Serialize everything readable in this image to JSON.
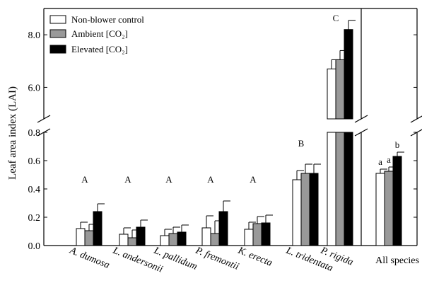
{
  "chart_data": {
    "type": "bar",
    "ylabel": "Leaf area index (LAI)",
    "y_axis_lower": {
      "range": [
        0,
        0.8
      ],
      "ticks": [
        "0.0",
        "0.2",
        "0.4",
        "0.6",
        "0.8"
      ]
    },
    "y_axis_upper": {
      "range": [
        4.8,
        9.0
      ],
      "ticks": [
        "6.0",
        "8.0"
      ]
    },
    "categories": [
      "A. dumosa",
      "L. andersonii",
      "L. pallidum",
      "P. fremontii",
      "K. erecta",
      "L. tridentata",
      "P. rigida",
      "All species"
    ],
    "series": [
      {
        "name": "Non-blower control",
        "color": "#ffffff",
        "values": [
          0.12,
          0.08,
          0.07,
          0.125,
          0.115,
          0.465,
          6.7,
          0.51
        ],
        "errors": [
          0.045,
          0.045,
          0.045,
          0.085,
          0.05,
          0.065,
          0.35,
          0.03
        ]
      },
      {
        "name": "Ambient [CO₂]",
        "color": "#999999",
        "values": [
          0.105,
          0.055,
          0.085,
          0.085,
          0.155,
          0.51,
          7.05,
          0.525
        ],
        "errors": [
          0.045,
          0.055,
          0.045,
          0.09,
          0.05,
          0.065,
          0.35,
          0.03
        ]
      },
      {
        "name": "Elevated [CO₂]",
        "color": "#000000",
        "values": [
          0.24,
          0.13,
          0.095,
          0.24,
          0.16,
          0.51,
          8.2,
          0.63
        ],
        "errors": [
          0.055,
          0.05,
          0.05,
          0.075,
          0.055,
          0.065,
          0.35,
          0.03
        ]
      }
    ],
    "significance_letters": [
      {
        "category": "A. dumosa",
        "labels": [
          "A"
        ]
      },
      {
        "category": "L. andersonii",
        "labels": [
          "A"
        ]
      },
      {
        "category": "L. pallidum",
        "labels": [
          "A"
        ]
      },
      {
        "category": "P. fremontii",
        "labels": [
          "A"
        ]
      },
      {
        "category": "K. erecta",
        "labels": [
          "A"
        ]
      },
      {
        "category": "L. tridentata",
        "labels": [
          "B"
        ]
      },
      {
        "category": "P. rigida",
        "labels": [
          "C"
        ]
      },
      {
        "category": "All species",
        "labels": [
          "a",
          "a",
          "b"
        ]
      }
    ],
    "legend_position": "top-left",
    "grid": false
  }
}
